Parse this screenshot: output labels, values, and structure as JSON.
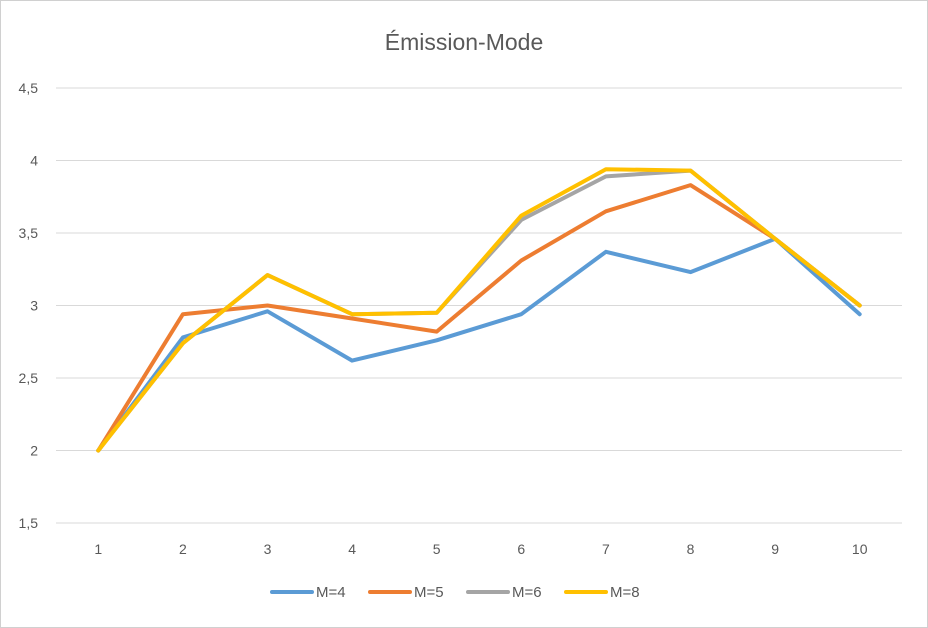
{
  "chart_data": {
    "type": "line",
    "title": "Émission-Mode",
    "xlabel": "",
    "ylabel": "",
    "categories": [
      "1",
      "2",
      "3",
      "4",
      "5",
      "6",
      "7",
      "8",
      "9",
      "10"
    ],
    "ylim": [
      1.5,
      4.5
    ],
    "y_ticks": [
      "1,5",
      "2",
      "2,5",
      "3",
      "3,5",
      "4",
      "4,5"
    ],
    "grid": true,
    "legend_position": "bottom",
    "series": [
      {
        "name": "M=4",
        "color": "#5B9BD5",
        "values": [
          2.0,
          2.78,
          2.96,
          2.62,
          2.76,
          2.94,
          3.37,
          3.23,
          3.46,
          2.94
        ]
      },
      {
        "name": "M=5",
        "color": "#ED7D31",
        "values": [
          2.0,
          2.94,
          3.0,
          2.91,
          2.82,
          3.31,
          3.65,
          3.83,
          3.46,
          3.0
        ]
      },
      {
        "name": "M=6",
        "color": "#A5A5A5",
        "values": [
          2.0,
          2.74,
          3.21,
          2.94,
          2.95,
          3.59,
          3.89,
          3.93,
          3.46,
          3.0
        ]
      },
      {
        "name": "M=8",
        "color": "#FFC000",
        "values": [
          2.0,
          2.74,
          3.21,
          2.94,
          2.95,
          3.62,
          3.94,
          3.93,
          3.46,
          3.0
        ]
      }
    ]
  }
}
